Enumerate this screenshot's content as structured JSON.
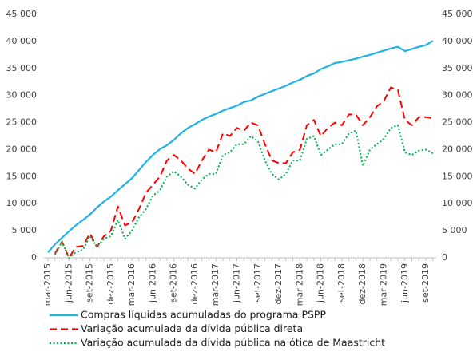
{
  "chart_data": {
    "type": "line",
    "categories": [
      "mar-2015",
      null,
      null,
      "jun-2015",
      null,
      null,
      "set-2015",
      null,
      null,
      "dez-2015",
      null,
      null,
      "mar-2016",
      null,
      null,
      "jun-2016",
      null,
      null,
      "set-2016",
      null,
      null,
      "dez-2016",
      null,
      null,
      "mar-2017",
      null,
      null,
      "jun-2017",
      null,
      null,
      "set-2017",
      null,
      null,
      "dez-2017",
      null,
      null,
      "mar-2018",
      null,
      null,
      "jun-2018",
      null,
      null,
      "set-2018",
      null,
      null,
      "dez-2018",
      null,
      null,
      "mar-2019",
      null,
      null,
      "jun-2019",
      null,
      null,
      "set-2019",
      null
    ],
    "series": [
      {
        "name": "Compras líquidas acumuladas do programa PSPP",
        "color": "#1fb2e6",
        "dash": "solid",
        "values": [
          1000,
          2500,
          3700,
          4900,
          6000,
          7000,
          8000,
          9300,
          10400,
          11300,
          12500,
          13600,
          14700,
          16200,
          17700,
          19000,
          20100,
          20800,
          21800,
          23000,
          24000,
          24700,
          25500,
          26100,
          26600,
          27200,
          27700,
          28100,
          28800,
          29100,
          29800,
          30300,
          30800,
          31300,
          31800,
          32400,
          32900,
          33600,
          34100,
          34900,
          35400,
          36000,
          36200,
          36500,
          36800,
          37200,
          37500,
          37900,
          38300,
          38700,
          39000,
          38200,
          38600,
          39000,
          39300,
          40100
        ]
      },
      {
        "name": "Variação acumulada da dívida pública direta",
        "color": "#ff0000",
        "dash": "dashed",
        "values": [
          null,
          800,
          3000,
          0,
          2000,
          2200,
          4500,
          2000,
          4000,
          5000,
          9500,
          6000,
          6500,
          9000,
          12000,
          13500,
          15000,
          18000,
          19000,
          18000,
          16500,
          15500,
          18000,
          20000,
          19500,
          23000,
          22500,
          24000,
          23500,
          25000,
          24500,
          21000,
          18000,
          17500,
          17500,
          19500,
          20000,
          24500,
          25500,
          22500,
          24000,
          25000,
          24500,
          26500,
          26500,
          24500,
          26000,
          28000,
          29000,
          31500,
          31000,
          25500,
          24500,
          26000,
          26000,
          25800
        ]
      },
      {
        "name": "Variação acumulada da dívida pública na ótica de Maastricht",
        "color": "#00b050",
        "dash": "dotted",
        "values": [
          null,
          500,
          3000,
          0,
          1000,
          1500,
          4000,
          2000,
          3500,
          4000,
          7000,
          3500,
          5000,
          7500,
          9000,
          11500,
          12500,
          15000,
          16000,
          15000,
          13500,
          12800,
          14500,
          15500,
          15500,
          19000,
          19500,
          21000,
          21000,
          22500,
          21500,
          18000,
          15500,
          14500,
          15500,
          18000,
          18000,
          22000,
          22500,
          19000,
          20000,
          21000,
          21000,
          23000,
          23500,
          17000,
          20000,
          21000,
          22000,
          24000,
          24500,
          19500,
          19000,
          19800,
          20000,
          19300
        ]
      }
    ],
    "ylim": [
      0,
      45000
    ],
    "yticks": [
      {
        "value": 0,
        "label": "0"
      },
      {
        "value": 5000,
        "label": "5 000"
      },
      {
        "value": 10000,
        "label": "10 000"
      },
      {
        "value": 15000,
        "label": "15 000"
      },
      {
        "value": 20000,
        "label": "20 000"
      },
      {
        "value": 25000,
        "label": "25 000"
      },
      {
        "value": 30000,
        "label": "30 000"
      },
      {
        "value": 35000,
        "label": "35 000"
      },
      {
        "value": 40000,
        "label": "40 000"
      },
      {
        "value": 45000,
        "label": "45 000"
      }
    ],
    "y2lim": [
      0,
      45000
    ],
    "y2ticks": [
      {
        "value": 0,
        "label": "0"
      },
      {
        "value": 5000,
        "label": "5 000"
      },
      {
        "value": 10000,
        "label": "10 000"
      },
      {
        "value": 15000,
        "label": "15 000"
      },
      {
        "value": 20000,
        "label": "20 000"
      },
      {
        "value": 25000,
        "label": "25 000"
      },
      {
        "value": 30000,
        "label": "30 000"
      },
      {
        "value": 35000,
        "label": "35 000"
      },
      {
        "value": 40000,
        "label": "40 000"
      },
      {
        "value": 45000,
        "label": "45 000"
      }
    ],
    "legend": "bottom"
  }
}
